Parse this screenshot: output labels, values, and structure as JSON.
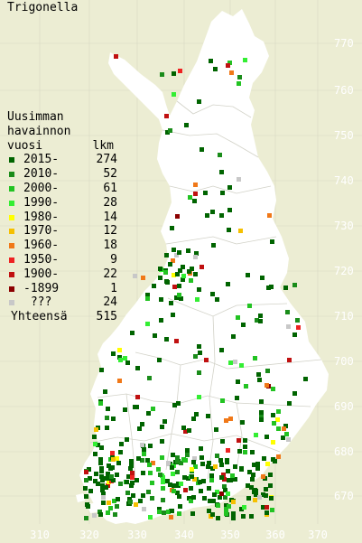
{
  "title": "Trigonella",
  "legend": {
    "heading": [
      "Uusimman",
      "havainnon",
      "vuosi"
    ],
    "count_heading": "lkm",
    "rows": [
      {
        "label": "2015-",
        "count": "274",
        "color": "#006400"
      },
      {
        "label": "2010-",
        "count": "52",
        "color": "#1a8c1a"
      },
      {
        "label": "2000-",
        "count": "61",
        "color": "#22c322"
      },
      {
        "label": "1990-",
        "count": "28",
        "color": "#33ee33"
      },
      {
        "label": "1980-",
        "count": "14",
        "color": "#ffff00"
      },
      {
        "label": "1970-",
        "count": "12",
        "color": "#f5c000"
      },
      {
        "label": "1960-",
        "count": "18",
        "color": "#f07818"
      },
      {
        "label": "1950-",
        "count": "9",
        "color": "#ee2222"
      },
      {
        "label": "1900-",
        "count": "22",
        "color": "#c01010"
      },
      {
        "label": "-1899",
        "count": "1",
        "color": "#8b0000"
      },
      {
        "label": " ???",
        "count": "24",
        "color": "#c8c8c8"
      }
    ],
    "total_label": "Yhteensä",
    "total_count": "515"
  },
  "axes": {
    "x_ticks": [
      "310",
      "320",
      "330",
      "340",
      "350",
      "360",
      "370"
    ],
    "y_ticks": [
      "770",
      "760",
      "750",
      "740",
      "730",
      "720",
      "710",
      "700",
      "690",
      "680",
      "670"
    ]
  },
  "colors": {
    "land": "#ffffff",
    "sea": "#ecedd3",
    "grid": "#d8d8c4",
    "border": "#cfcfcf",
    "tick_text": "#ffffff"
  }
}
